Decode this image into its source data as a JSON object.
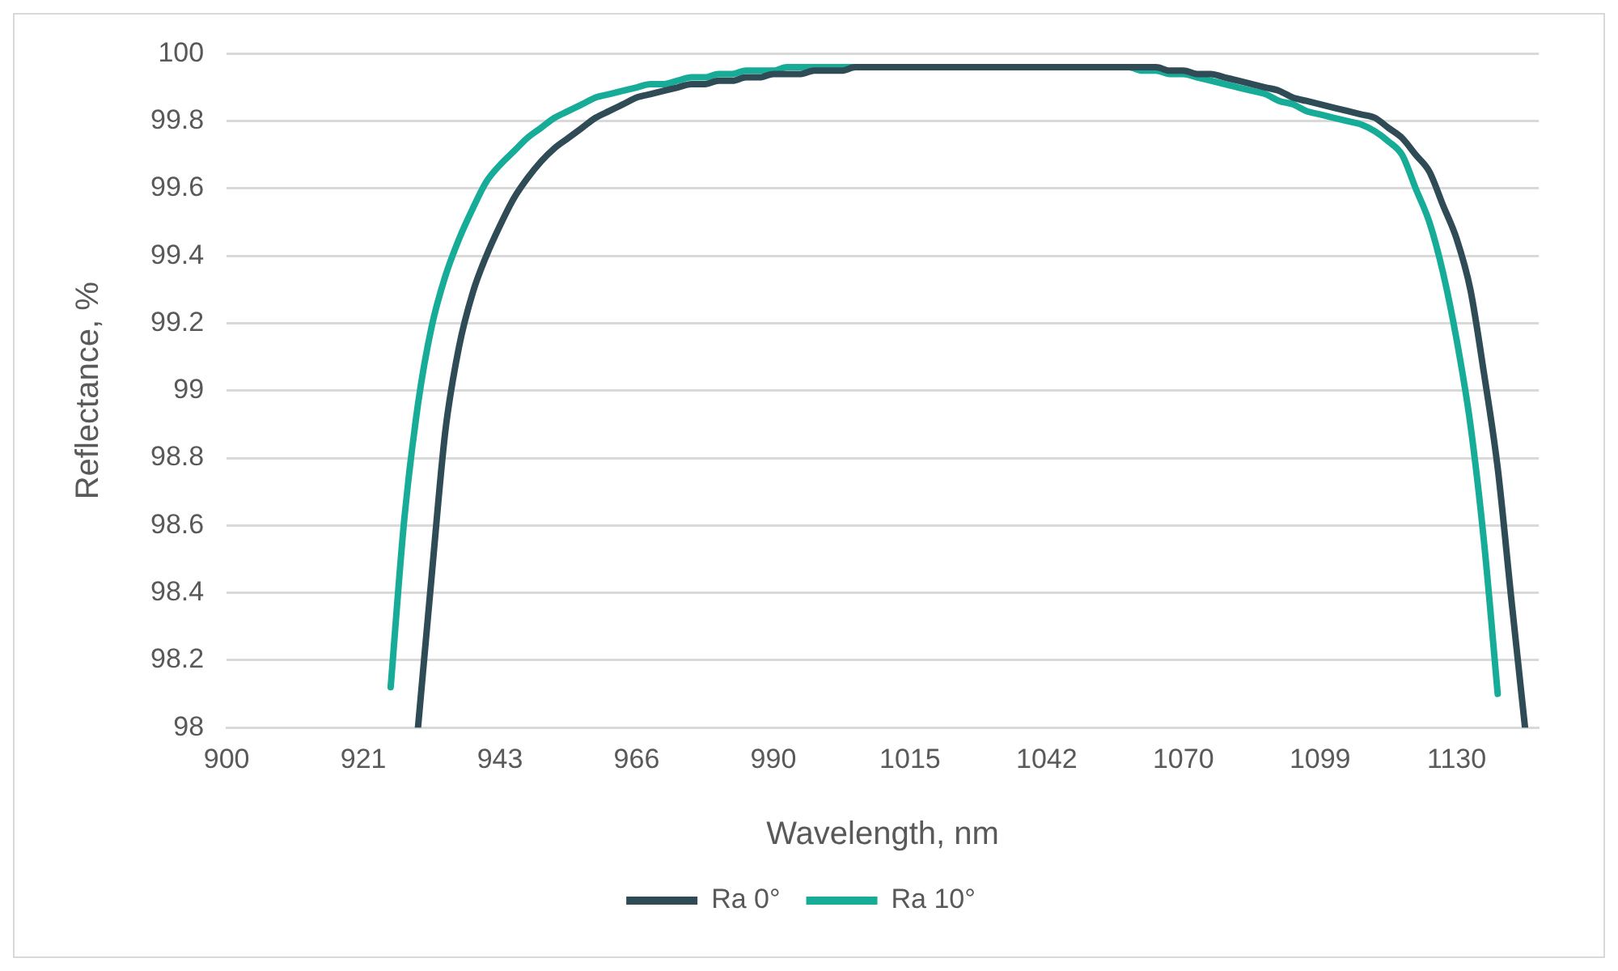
{
  "chart_data": {
    "type": "line",
    "xlabel": "Wavelength, nm",
    "ylabel": "Reflectance, %",
    "categories": [
      "900",
      null,
      null,
      null,
      null,
      null,
      null,
      null,
      null,
      null,
      "921",
      null,
      null,
      null,
      null,
      null,
      null,
      null,
      null,
      null,
      "943",
      null,
      null,
      null,
      null,
      null,
      null,
      null,
      null,
      null,
      "966",
      null,
      null,
      null,
      null,
      null,
      null,
      null,
      null,
      null,
      "990",
      null,
      null,
      null,
      null,
      null,
      null,
      null,
      null,
      null,
      "1015",
      null,
      null,
      null,
      null,
      null,
      null,
      null,
      null,
      null,
      "1042",
      null,
      null,
      null,
      null,
      null,
      null,
      null,
      null,
      null,
      "1070",
      null,
      null,
      null,
      null,
      null,
      null,
      null,
      null,
      null,
      "1099",
      null,
      null,
      null,
      null,
      null,
      null,
      null,
      null,
      null,
      "1130",
      null,
      null,
      null,
      null,
      null,
      null
    ],
    "series": [
      {
        "name": "Ra 0°",
        "color": "#2f4b56",
        "values": [
          null,
          null,
          null,
          null,
          null,
          null,
          null,
          null,
          null,
          null,
          null,
          null,
          null,
          null,
          98.0,
          98.45,
          98.88,
          99.13,
          99.29,
          99.4,
          99.49,
          99.57,
          99.63,
          99.68,
          99.72,
          99.75,
          99.78,
          99.81,
          99.83,
          99.85,
          99.87,
          99.88,
          99.89,
          99.9,
          99.91,
          99.91,
          99.92,
          99.92,
          99.93,
          99.93,
          99.94,
          99.94,
          99.94,
          99.95,
          99.95,
          99.95,
          99.96,
          99.96,
          99.96,
          99.96,
          99.96,
          99.96,
          99.96,
          99.96,
          99.96,
          99.96,
          99.96,
          99.96,
          99.96,
          99.96,
          99.96,
          99.96,
          99.96,
          99.96,
          99.96,
          99.96,
          99.96,
          99.96,
          99.96,
          99.95,
          99.95,
          99.94,
          99.94,
          99.93,
          99.92,
          99.91,
          99.9,
          99.89,
          99.87,
          99.86,
          99.85,
          99.84,
          99.83,
          99.82,
          99.81,
          99.78,
          99.75,
          99.7,
          99.65,
          99.55,
          99.45,
          99.3,
          99.05,
          98.77,
          98.38,
          98.0,
          null
        ]
      },
      {
        "name": "Ra 10°",
        "color": "#16ac97",
        "values": [
          null,
          null,
          null,
          null,
          null,
          null,
          null,
          null,
          null,
          null,
          null,
          null,
          98.12,
          98.62,
          98.96,
          99.19,
          99.34,
          99.45,
          99.54,
          99.62,
          99.67,
          99.71,
          99.75,
          99.78,
          99.81,
          99.83,
          99.85,
          99.87,
          99.88,
          99.89,
          99.9,
          99.91,
          99.91,
          99.92,
          99.93,
          99.93,
          99.94,
          99.94,
          99.95,
          99.95,
          99.95,
          99.96,
          99.96,
          99.96,
          99.96,
          99.96,
          99.96,
          99.96,
          99.96,
          99.96,
          99.96,
          99.96,
          99.96,
          99.96,
          99.96,
          99.96,
          99.96,
          99.96,
          99.96,
          99.96,
          99.96,
          99.96,
          99.96,
          99.96,
          99.96,
          99.96,
          99.96,
          99.95,
          99.95,
          99.94,
          99.94,
          99.93,
          99.92,
          99.91,
          99.9,
          99.89,
          99.88,
          99.86,
          99.85,
          99.83,
          99.82,
          99.81,
          99.8,
          99.79,
          99.77,
          99.74,
          99.7,
          99.6,
          99.5,
          99.35,
          99.15,
          98.9,
          98.55,
          98.1,
          null,
          null,
          null
        ]
      }
    ],
    "ylim": [
      98,
      100
    ],
    "yticks": [
      98,
      98.2,
      98.4,
      98.6,
      98.8,
      99,
      99.2,
      99.4,
      99.6,
      99.8,
      100
    ],
    "grid": "y",
    "legend": "bottom",
    "marker": "none",
    "line_style": "solid"
  }
}
